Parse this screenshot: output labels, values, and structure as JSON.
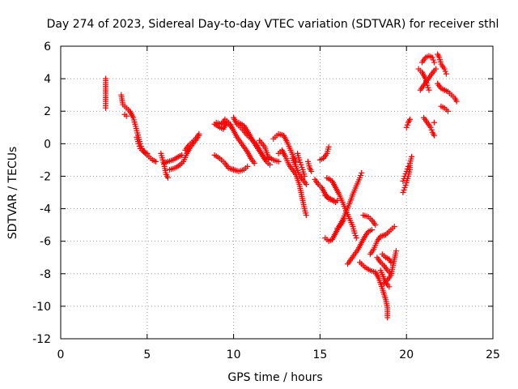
{
  "chart_data": {
    "type": "scatter",
    "title": "Day 274 of 2023, Sidereal Day-to-day VTEC variation (SDTVAR) for receiver sthl",
    "xlabel": "GPS time / hours",
    "ylabel": "SDTVAR / TECUs",
    "xlim": [
      0,
      25
    ],
    "ylim": [
      -12,
      6
    ],
    "xticks": [
      0,
      5,
      10,
      15,
      20,
      25
    ],
    "yticks": [
      6,
      4,
      2,
      0,
      -2,
      -4,
      -6,
      -8,
      -10,
      -12
    ],
    "grid": true,
    "marker": "plus",
    "color": "#ff0000",
    "series": [
      {
        "name": "SDTVAR",
        "tracks": [
          [
            [
              2.6,
              4.0
            ],
            [
              2.6,
              2.6
            ],
            [
              2.6,
              2.2
            ]
          ],
          [
            [
              3.5,
              3.0
            ],
            [
              3.6,
              2.4
            ],
            [
              3.8,
              2.2
            ],
            [
              4.0,
              2.0
            ],
            [
              4.2,
              1.6
            ],
            [
              4.3,
              1.2
            ],
            [
              4.4,
              0.8
            ],
            [
              4.5,
              0.4
            ],
            [
              4.6,
              0.0
            ],
            [
              4.7,
              -0.3
            ],
            [
              4.9,
              -0.6
            ],
            [
              5.1,
              -0.8
            ],
            [
              5.3,
              -1.0
            ],
            [
              5.5,
              -1.1
            ]
          ],
          [
            [
              3.7,
              1.8
            ],
            [
              3.8,
              1.7
            ]
          ],
          [
            [
              4.4,
              0.4
            ],
            [
              4.5,
              0.0
            ],
            [
              4.6,
              -0.3
            ],
            [
              4.8,
              -0.5
            ],
            [
              5.0,
              -0.6
            ]
          ],
          [
            [
              5.8,
              -0.6
            ],
            [
              5.9,
              -1.0
            ],
            [
              6.0,
              -1.4
            ],
            [
              6.1,
              -1.9
            ],
            [
              6.2,
              -2.1
            ]
          ],
          [
            [
              6.0,
              -1.2
            ],
            [
              6.2,
              -1.1
            ],
            [
              6.5,
              -1.0
            ],
            [
              6.8,
              -0.8
            ],
            [
              7.0,
              -0.7
            ]
          ],
          [
            [
              6.3,
              -1.6
            ],
            [
              6.6,
              -1.5
            ],
            [
              6.9,
              -1.3
            ],
            [
              7.1,
              -1.1
            ],
            [
              7.3,
              -0.6
            ],
            [
              7.5,
              -0.2
            ],
            [
              7.8,
              0.2
            ],
            [
              8.0,
              0.5
            ]
          ],
          [
            [
              7.2,
              -0.4
            ],
            [
              7.4,
              -0.1
            ],
            [
              7.6,
              0.1
            ],
            [
              7.8,
              0.3
            ],
            [
              8.0,
              0.6
            ]
          ],
          [
            [
              8.9,
              -0.7
            ],
            [
              9.2,
              -0.9
            ],
            [
              9.5,
              -1.2
            ],
            [
              9.7,
              -1.5
            ],
            [
              10.0,
              -1.6
            ],
            [
              10.3,
              -1.7
            ],
            [
              10.6,
              -1.6
            ],
            [
              10.8,
              -1.4
            ]
          ],
          [
            [
              8.9,
              1.2
            ],
            [
              9.2,
              1.0
            ],
            [
              9.4,
              0.9
            ],
            [
              9.6,
              1.3
            ],
            [
              9.8,
              1.1
            ]
          ],
          [
            [
              9.0,
              1.3
            ],
            [
              9.3,
              1.2
            ],
            [
              9.5,
              1.5
            ],
            [
              9.8,
              1.2
            ],
            [
              10.0,
              0.8
            ],
            [
              10.2,
              0.4
            ],
            [
              10.4,
              0.1
            ],
            [
              10.6,
              -0.2
            ],
            [
              10.8,
              -0.5
            ],
            [
              11.0,
              -0.9
            ],
            [
              11.2,
              -1.2
            ]
          ],
          [
            [
              10.0,
              1.6
            ],
            [
              10.2,
              1.2
            ],
            [
              10.5,
              0.9
            ],
            [
              10.8,
              0.5
            ],
            [
              11.0,
              0.3
            ],
            [
              11.3,
              0.0
            ],
            [
              11.5,
              -0.4
            ],
            [
              11.7,
              -0.8
            ],
            [
              11.9,
              -1.1
            ],
            [
              12.1,
              -1.3
            ]
          ],
          [
            [
              10.3,
              1.3
            ],
            [
              10.6,
              1.1
            ],
            [
              10.9,
              0.6
            ],
            [
              11.1,
              0.2
            ],
            [
              11.4,
              -0.3
            ],
            [
              11.6,
              -0.6
            ],
            [
              11.8,
              -0.9
            ],
            [
              12.0,
              -1.0
            ]
          ],
          [
            [
              11.5,
              0.2
            ],
            [
              11.8,
              -0.2
            ],
            [
              12.0,
              -0.8
            ],
            [
              12.3,
              -1.0
            ],
            [
              12.6,
              -1.1
            ]
          ],
          [
            [
              12.3,
              0.3
            ],
            [
              12.6,
              0.6
            ],
            [
              12.9,
              0.5
            ],
            [
              13.1,
              0.1
            ],
            [
              13.3,
              -0.4
            ],
            [
              13.5,
              -0.9
            ],
            [
              13.6,
              -1.1
            ]
          ],
          [
            [
              12.6,
              -0.6
            ],
            [
              12.8,
              -0.4
            ],
            [
              13.0,
              -0.8
            ],
            [
              13.2,
              -1.3
            ],
            [
              13.4,
              -1.6
            ],
            [
              13.6,
              -1.9
            ],
            [
              13.8,
              -2.5
            ],
            [
              13.9,
              -3.0
            ],
            [
              14.0,
              -3.5
            ],
            [
              14.1,
              -4.0
            ],
            [
              14.2,
              -4.4
            ]
          ],
          [
            [
              13.4,
              -0.9
            ],
            [
              13.6,
              -1.4
            ],
            [
              13.8,
              -1.9
            ],
            [
              14.0,
              -2.2
            ],
            [
              14.2,
              -2.5
            ]
          ],
          [
            [
              13.7,
              -0.6
            ],
            [
              13.8,
              -1.0
            ],
            [
              13.9,
              -1.3
            ],
            [
              14.0,
              -1.6
            ],
            [
              14.1,
              -2.0
            ]
          ],
          [
            [
              14.3,
              -1.1
            ],
            [
              14.4,
              -1.5
            ],
            [
              14.5,
              -1.7
            ]
          ],
          [
            [
              14.7,
              -2.2
            ],
            [
              14.9,
              -2.5
            ],
            [
              15.1,
              -2.7
            ],
            [
              15.3,
              -3.1
            ],
            [
              15.5,
              -3.4
            ],
            [
              15.8,
              -3.5
            ],
            [
              16.0,
              -3.5
            ]
          ],
          [
            [
              15.0,
              -1.0
            ],
            [
              15.2,
              -0.9
            ],
            [
              15.4,
              -0.6
            ],
            [
              15.5,
              -0.2
            ]
          ],
          [
            [
              15.3,
              -3.2
            ],
            [
              15.6,
              -3.4
            ],
            [
              15.9,
              -3.6
            ]
          ],
          [
            [
              15.4,
              -2.1
            ],
            [
              15.7,
              -2.3
            ],
            [
              15.9,
              -2.7
            ],
            [
              16.1,
              -3.1
            ],
            [
              16.3,
              -3.6
            ],
            [
              16.5,
              -4.1
            ],
            [
              16.7,
              -4.6
            ],
            [
              16.9,
              -5.1
            ],
            [
              17.0,
              -5.5
            ],
            [
              17.1,
              -5.8
            ]
          ],
          [
            [
              15.3,
              -5.8
            ],
            [
              15.5,
              -6.0
            ],
            [
              15.7,
              -5.9
            ],
            [
              15.9,
              -5.5
            ],
            [
              16.1,
              -5.1
            ],
            [
              16.3,
              -4.7
            ],
            [
              16.5,
              -4.2
            ],
            [
              16.7,
              -3.7
            ],
            [
              16.9,
              -3.1
            ],
            [
              17.1,
              -2.6
            ],
            [
              17.3,
              -2.1
            ],
            [
              17.4,
              -1.8
            ]
          ],
          [
            [
              16.0,
              -5.2
            ],
            [
              16.2,
              -5.0
            ],
            [
              16.4,
              -4.6
            ]
          ],
          [
            [
              16.6,
              -7.4
            ],
            [
              16.8,
              -7.1
            ],
            [
              17.0,
              -6.8
            ],
            [
              17.2,
              -6.5
            ],
            [
              17.4,
              -6.1
            ],
            [
              17.6,
              -5.7
            ],
            [
              17.8,
              -5.4
            ],
            [
              18.0,
              -5.3
            ]
          ],
          [
            [
              17.5,
              -4.4
            ],
            [
              17.8,
              -4.5
            ],
            [
              18.0,
              -4.7
            ],
            [
              18.2,
              -5.0
            ]
          ],
          [
            [
              17.3,
              -7.3
            ],
            [
              17.6,
              -7.6
            ],
            [
              17.9,
              -7.8
            ],
            [
              18.2,
              -7.9
            ],
            [
              18.4,
              -8.3
            ],
            [
              18.6,
              -8.9
            ],
            [
              18.8,
              -9.6
            ],
            [
              18.9,
              -10.1
            ],
            [
              18.9,
              -10.7
            ]
          ],
          [
            [
              17.9,
              -6.8
            ],
            [
              18.1,
              -6.5
            ],
            [
              18.3,
              -6.0
            ],
            [
              18.5,
              -5.7
            ],
            [
              18.8,
              -5.6
            ],
            [
              19.0,
              -5.4
            ],
            [
              19.2,
              -5.2
            ],
            [
              19.3,
              -5.1
            ]
          ],
          [
            [
              18.3,
              -7.0
            ],
            [
              18.5,
              -7.3
            ],
            [
              18.7,
              -7.5
            ],
            [
              18.9,
              -7.8
            ],
            [
              19.1,
              -8.0
            ]
          ],
          [
            [
              18.5,
              -7.8
            ],
            [
              18.7,
              -8.3
            ],
            [
              18.9,
              -8.7
            ],
            [
              19.0,
              -8.8
            ]
          ],
          [
            [
              18.6,
              -6.8
            ],
            [
              18.8,
              -7.0
            ],
            [
              19.0,
              -7.1
            ],
            [
              19.1,
              -7.3
            ]
          ],
          [
            [
              18.7,
              -8.6
            ],
            [
              18.9,
              -8.4
            ],
            [
              19.1,
              -8.1
            ],
            [
              19.2,
              -7.6
            ],
            [
              19.3,
              -7.1
            ],
            [
              19.4,
              -6.6
            ]
          ],
          [
            [
              19.8,
              -3.0
            ],
            [
              19.9,
              -2.7
            ],
            [
              20.0,
              -2.4
            ],
            [
              20.1,
              -2.0
            ],
            [
              20.2,
              -1.6
            ],
            [
              20.2,
              -1.2
            ],
            [
              20.3,
              -0.8
            ]
          ],
          [
            [
              19.8,
              -2.3
            ],
            [
              19.9,
              -2.0
            ],
            [
              20.0,
              -1.7
            ],
            [
              20.1,
              -1.4
            ]
          ],
          [
            [
              20.0,
              1.0
            ],
            [
              20.1,
              1.3
            ],
            [
              20.2,
              1.5
            ]
          ],
          [
            [
              20.7,
              4.6
            ],
            [
              20.9,
              4.4
            ],
            [
              21.1,
              4.0
            ],
            [
              21.2,
              3.6
            ],
            [
              21.3,
              3.3
            ]
          ],
          [
            [
              20.8,
              3.3
            ],
            [
              21.0,
              3.6
            ],
            [
              21.2,
              3.9
            ],
            [
              21.4,
              4.2
            ],
            [
              21.6,
              4.5
            ],
            [
              21.7,
              4.6
            ]
          ],
          [
            [
              20.9,
              5.0
            ],
            [
              21.1,
              5.3
            ],
            [
              21.3,
              5.4
            ],
            [
              21.5,
              5.3
            ],
            [
              21.6,
              5.0
            ]
          ],
          [
            [
              21.0,
              1.6
            ],
            [
              21.2,
              1.3
            ],
            [
              21.4,
              1.0
            ],
            [
              21.5,
              0.7
            ],
            [
              21.6,
              0.5
            ]
          ],
          [
            [
              21.6,
              1.3
            ]
          ],
          [
            [
              21.8,
              5.5
            ],
            [
              21.9,
              5.3
            ],
            [
              22.0,
              4.9
            ],
            [
              22.2,
              4.6
            ],
            [
              22.3,
              4.3
            ]
          ],
          [
            [
              21.8,
              3.7
            ],
            [
              22.0,
              3.4
            ],
            [
              22.2,
              3.3
            ]
          ],
          [
            [
              22.0,
              2.3
            ],
            [
              22.2,
              2.2
            ],
            [
              22.4,
              2.0
            ]
          ],
          [
            [
              22.2,
              3.3
            ],
            [
              22.4,
              3.2
            ],
            [
              22.6,
              3.0
            ],
            [
              22.8,
              2.8
            ],
            [
              22.9,
              2.6
            ]
          ]
        ]
      }
    ]
  }
}
